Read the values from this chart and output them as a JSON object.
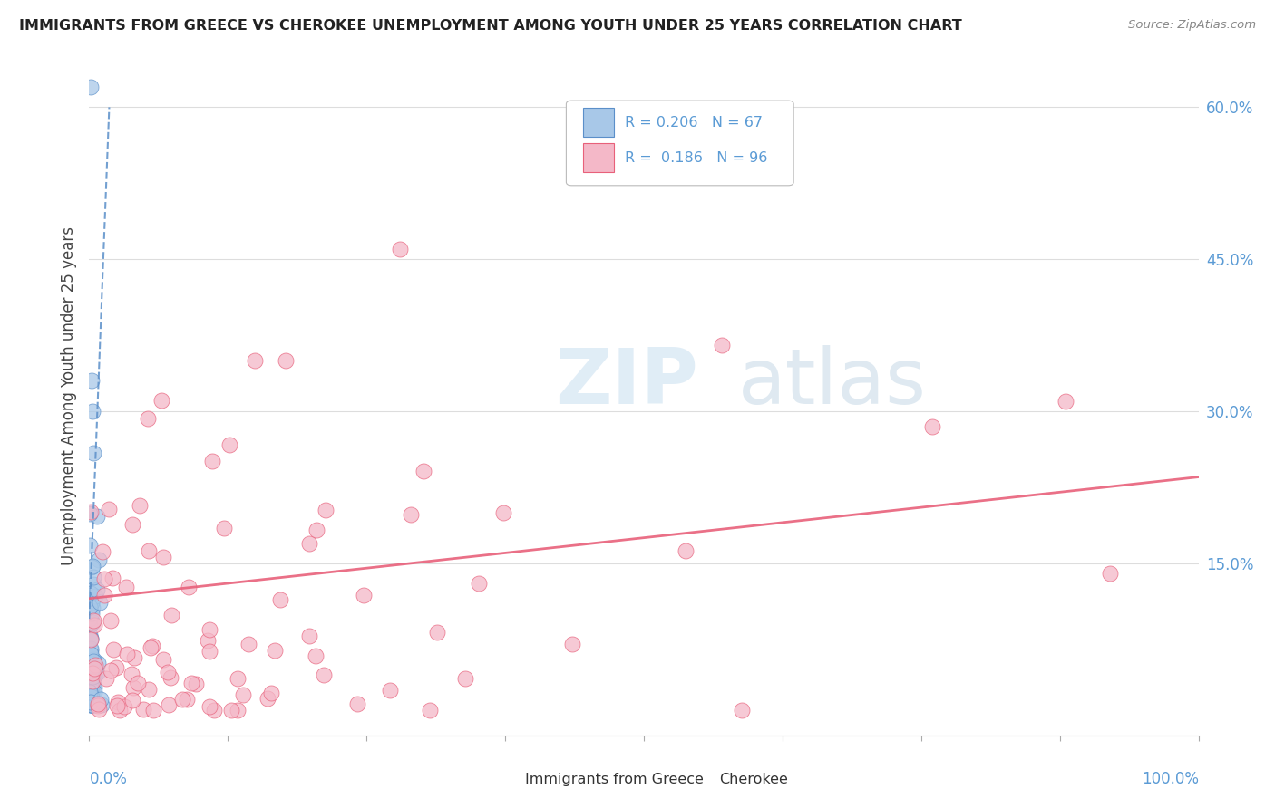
{
  "title": "IMMIGRANTS FROM GREECE VS CHEROKEE UNEMPLOYMENT AMONG YOUTH UNDER 25 YEARS CORRELATION CHART",
  "source": "Source: ZipAtlas.com",
  "ylabel": "Unemployment Among Youth under 25 years",
  "color_blue": "#a8c8e8",
  "color_blue_line": "#5b8fc9",
  "color_pink": "#f4b8c8",
  "color_pink_line": "#e8607a",
  "color_grid": "#dddddd",
  "color_axis_labels": "#5b9bd5",
  "xlim": [
    0,
    1.0
  ],
  "ylim": [
    -0.02,
    0.65
  ],
  "yticks": [
    0.15,
    0.3,
    0.45,
    0.6
  ],
  "ytick_labels": [
    "15.0%",
    "30.0%",
    "45.0%",
    "60.0%"
  ]
}
